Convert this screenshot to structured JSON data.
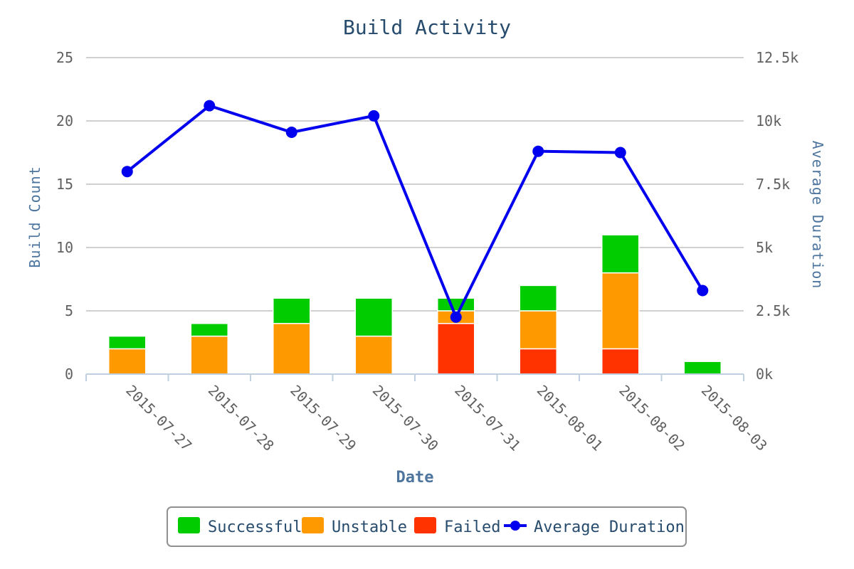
{
  "chart_data": {
    "type": "bar",
    "title": "Build Activity",
    "xlabel": "Date",
    "ylabel_left": "Build Count",
    "ylabel_right": "Average Duration",
    "categories": [
      "2015-07-27",
      "2015-07-28",
      "2015-07-29",
      "2015-07-30",
      "2015-07-31",
      "2015-08-01",
      "2015-08-02",
      "2015-08-03"
    ],
    "ylim_left": [
      0,
      25
    ],
    "yticks_left": [
      "0",
      "5",
      "10",
      "15",
      "20",
      "25"
    ],
    "ylim_right": [
      0,
      12500
    ],
    "yticks_right": [
      "0k",
      "2.5k",
      "5k",
      "7.5k",
      "10k",
      "12.5k"
    ],
    "stacked": true,
    "grid": true,
    "legend_position": "bottom",
    "series": [
      {
        "name": "Successful",
        "type": "bar",
        "color": "#00cc00",
        "values": [
          1,
          1,
          2,
          3,
          1,
          2,
          3,
          1
        ]
      },
      {
        "name": "Unstable",
        "type": "bar",
        "color": "#ff9900",
        "values": [
          2,
          3,
          4,
          3,
          1,
          3,
          6,
          0
        ]
      },
      {
        "name": "Failed",
        "type": "bar",
        "color": "#ff3300",
        "values": [
          0,
          0,
          0,
          0,
          4,
          2,
          2,
          0
        ]
      },
      {
        "name": "Average Duration",
        "type": "line",
        "axis": "right",
        "color": "#0000ee",
        "values": [
          8000,
          10600,
          9550,
          10200,
          2250,
          8800,
          8750,
          3300
        ]
      }
    ]
  }
}
